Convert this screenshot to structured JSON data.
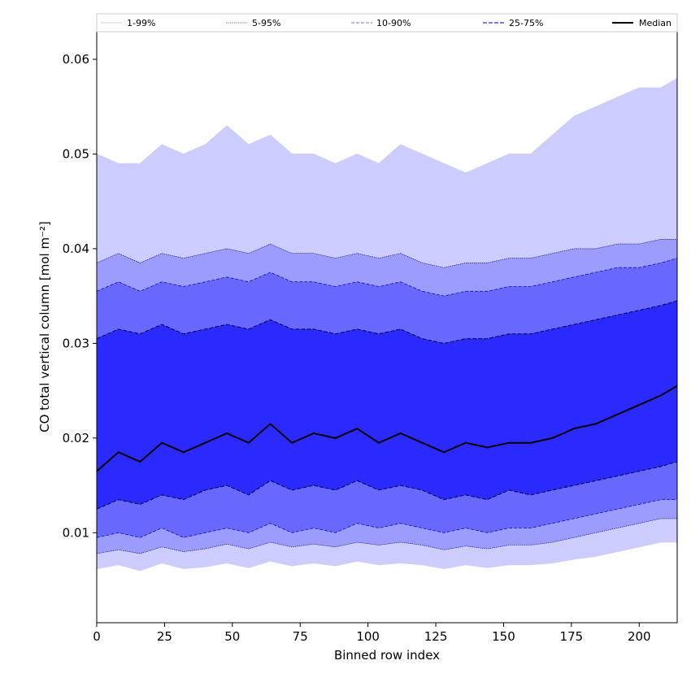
{
  "chart_data": {
    "type": "area",
    "title": "",
    "xlabel": "Binned row index",
    "ylabel": "CO total vertical column [mol m⁻²]",
    "xlim": [
      0,
      214
    ],
    "ylim": [
      0.0005,
      0.063
    ],
    "x_ticks": [
      0,
      25,
      50,
      75,
      100,
      125,
      150,
      175,
      200
    ],
    "y_ticks": [
      0.01,
      0.02,
      0.03,
      0.04,
      0.05,
      0.06
    ],
    "y_tick_labels": [
      "0.01",
      "0.02",
      "0.03",
      "0.04",
      "0.05",
      "0.06"
    ],
    "grid": false,
    "legend_position": "top",
    "legend": [
      "1-99%",
      "5-95%",
      "10-90%",
      "25-75%",
      "Median"
    ],
    "colors": {
      "band_1_99": "#ccccff",
      "band_5_95": "#9c9cff",
      "band_10_90": "#6868ff",
      "band_25_75": "#2a2aff",
      "line_1_99": "#cfcff0",
      "line_5_95": "#00007a",
      "line_10_90": "#1010a0",
      "line_25_75": "#000050",
      "median": "#000000"
    },
    "x": [
      0,
      8,
      16,
      24,
      32,
      40,
      48,
      56,
      64,
      72,
      80,
      88,
      96,
      104,
      112,
      120,
      128,
      136,
      144,
      152,
      160,
      168,
      176,
      184,
      192,
      200,
      208,
      214
    ],
    "series": [
      {
        "name": "Median",
        "values": [
          0.0165,
          0.0185,
          0.0175,
          0.0195,
          0.0185,
          0.0195,
          0.0205,
          0.0195,
          0.0215,
          0.0195,
          0.0205,
          0.02,
          0.021,
          0.0195,
          0.0205,
          0.0195,
          0.0185,
          0.0195,
          0.019,
          0.0195,
          0.0195,
          0.02,
          0.021,
          0.0215,
          0.0225,
          0.0235,
          0.0245,
          0.0255
        ]
      },
      {
        "name": "25-75% lower",
        "values": [
          0.0125,
          0.0135,
          0.013,
          0.014,
          0.0135,
          0.0145,
          0.015,
          0.014,
          0.0155,
          0.0145,
          0.015,
          0.0145,
          0.0155,
          0.0145,
          0.015,
          0.0145,
          0.0135,
          0.014,
          0.0135,
          0.0145,
          0.014,
          0.0145,
          0.015,
          0.0155,
          0.016,
          0.0165,
          0.017,
          0.0175
        ]
      },
      {
        "name": "25-75% upper",
        "values": [
          0.0305,
          0.0315,
          0.031,
          0.032,
          0.031,
          0.0315,
          0.032,
          0.0315,
          0.0325,
          0.0315,
          0.0315,
          0.031,
          0.0315,
          0.031,
          0.0315,
          0.0305,
          0.03,
          0.0305,
          0.0305,
          0.031,
          0.031,
          0.0315,
          0.032,
          0.0325,
          0.033,
          0.0335,
          0.034,
          0.0345
        ]
      },
      {
        "name": "10-90% lower",
        "values": [
          0.0095,
          0.01,
          0.0095,
          0.0105,
          0.0095,
          0.01,
          0.0105,
          0.01,
          0.011,
          0.01,
          0.0105,
          0.01,
          0.011,
          0.0105,
          0.011,
          0.0105,
          0.01,
          0.0105,
          0.01,
          0.0105,
          0.0105,
          0.011,
          0.0115,
          0.012,
          0.0125,
          0.013,
          0.0135,
          0.0135
        ]
      },
      {
        "name": "10-90% upper",
        "values": [
          0.0355,
          0.0365,
          0.0355,
          0.0365,
          0.036,
          0.0365,
          0.037,
          0.0365,
          0.0375,
          0.0365,
          0.0365,
          0.036,
          0.0365,
          0.036,
          0.0365,
          0.0355,
          0.035,
          0.0355,
          0.0355,
          0.036,
          0.036,
          0.0365,
          0.037,
          0.0375,
          0.038,
          0.038,
          0.0385,
          0.039
        ]
      },
      {
        "name": "5-95% lower",
        "values": [
          0.0078,
          0.0082,
          0.0078,
          0.0085,
          0.008,
          0.0083,
          0.0088,
          0.0083,
          0.009,
          0.0085,
          0.0088,
          0.0085,
          0.009,
          0.0087,
          0.009,
          0.0087,
          0.0082,
          0.0086,
          0.0083,
          0.0087,
          0.0087,
          0.009,
          0.0095,
          0.01,
          0.0105,
          0.011,
          0.0115,
          0.0115
        ]
      },
      {
        "name": "5-95% upper",
        "values": [
          0.0385,
          0.0395,
          0.0385,
          0.0395,
          0.039,
          0.0395,
          0.04,
          0.0395,
          0.0405,
          0.0395,
          0.0395,
          0.039,
          0.0395,
          0.039,
          0.0395,
          0.0385,
          0.038,
          0.0385,
          0.0385,
          0.039,
          0.039,
          0.0395,
          0.04,
          0.04,
          0.0405,
          0.0405,
          0.041,
          0.041
        ]
      },
      {
        "name": "1-99% lower",
        "values": [
          0.0062,
          0.0066,
          0.006,
          0.0068,
          0.0062,
          0.0064,
          0.0068,
          0.0063,
          0.007,
          0.0065,
          0.0068,
          0.0065,
          0.007,
          0.0066,
          0.0068,
          0.0066,
          0.0062,
          0.0066,
          0.0063,
          0.0066,
          0.0066,
          0.0068,
          0.0072,
          0.0075,
          0.008,
          0.0085,
          0.009,
          0.009
        ]
      },
      {
        "name": "1-99% upper",
        "values": [
          0.05,
          0.049,
          0.049,
          0.051,
          0.05,
          0.051,
          0.053,
          0.051,
          0.052,
          0.05,
          0.05,
          0.049,
          0.05,
          0.049,
          0.051,
          0.05,
          0.049,
          0.048,
          0.049,
          0.05,
          0.05,
          0.052,
          0.054,
          0.055,
          0.056,
          0.057,
          0.057,
          0.058
        ]
      }
    ]
  }
}
